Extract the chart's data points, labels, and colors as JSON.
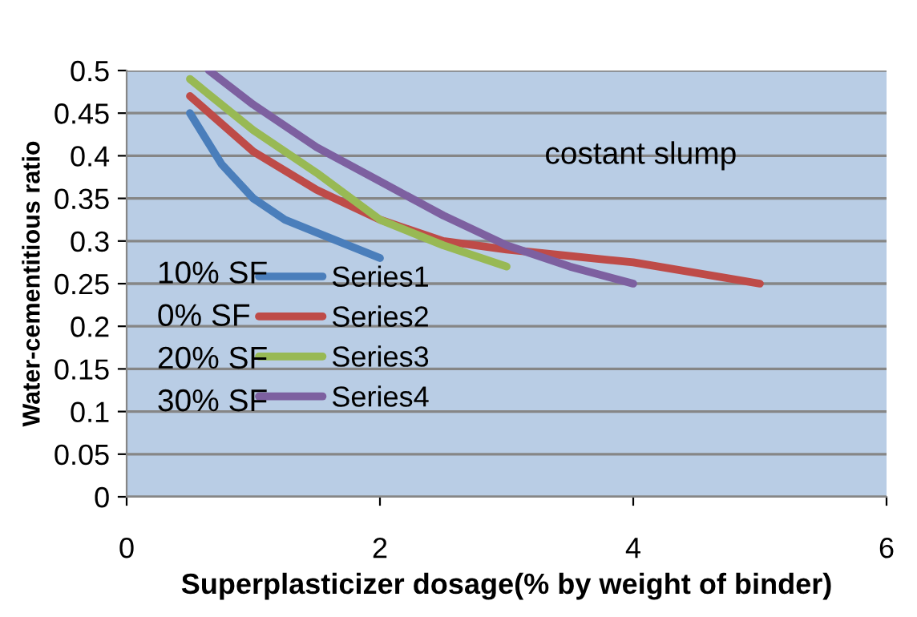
{
  "chart_data": {
    "type": "line",
    "xlabel": "Superplasticizer dosage(% by weight of binder)",
    "ylabel": "Water-cementitious ratio",
    "annotations": [
      "costant slump",
      "10% SF",
      "0% SF",
      "20% SF",
      "30% SF"
    ],
    "series": [
      {
        "name": "Series1",
        "color": "#4a7ebb",
        "x": [
          0.5,
          0.75,
          1,
          1.25,
          1.5,
          2
        ],
        "values": [
          0.45,
          0.39,
          0.35,
          0.325,
          0.31,
          0.28
        ]
      },
      {
        "name": "Series2",
        "color": "#be4b48",
        "x": [
          0.5,
          1,
          1.5,
          2,
          2.5,
          3,
          4,
          5
        ],
        "values": [
          0.47,
          0.405,
          0.36,
          0.325,
          0.3,
          0.29,
          0.275,
          0.25
        ]
      },
      {
        "name": "Series3",
        "color": "#98b954",
        "x": [
          0.5,
          1,
          1.5,
          2,
          2.5,
          3
        ],
        "values": [
          0.49,
          0.43,
          0.38,
          0.325,
          0.295,
          0.27
        ]
      },
      {
        "name": "Series4",
        "color": "#7d60a0",
        "x": [
          0.65,
          1,
          1.5,
          2,
          2.5,
          3,
          3.5,
          4
        ],
        "values": [
          0.5,
          0.46,
          0.41,
          0.37,
          0.33,
          0.295,
          0.27,
          0.25
        ]
      }
    ],
    "xlim": [
      0,
      6
    ],
    "xticks": [
      0,
      2,
      4,
      6
    ],
    "ylim": [
      0,
      0.5
    ],
    "yticks": [
      0,
      0.05,
      0.1,
      0.15,
      0.2,
      0.25,
      0.3,
      0.35,
      0.4,
      0.45,
      0.5
    ],
    "grid": "y",
    "legend": "left",
    "marker": "none",
    "line_style": "solid"
  }
}
